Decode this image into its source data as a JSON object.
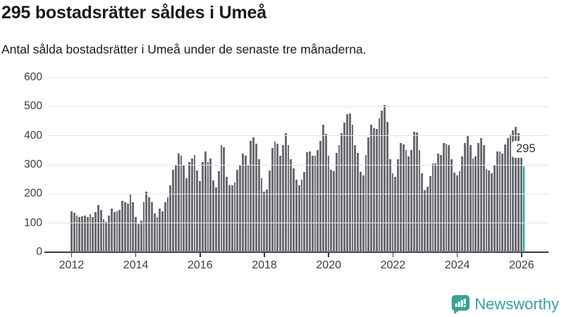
{
  "header": {
    "title": "295 bostadsrätter såldes i Umeå",
    "subtitle": "Antal sålda bostadsrätter i Umeå under de senaste tre månaderna."
  },
  "chart_data": {
    "type": "bar",
    "title": "295 bostadsrätter såldes i Umeå",
    "subtitle": "Antal sålda bostadsrätter i Umeå under de senaste tre månaderna.",
    "x_unit": "month",
    "start_month": "2012-01",
    "end_month": "2026-02",
    "ylim": [
      0,
      600
    ],
    "yticks": [
      0,
      100,
      200,
      300,
      400,
      500,
      600
    ],
    "grid": true,
    "bar_color": "#6b6b73",
    "highlight_color": "#00a49e",
    "highlight_index": 169,
    "annotation_label": "295",
    "x_ticks": [
      {
        "label": "2012",
        "index": 0
      },
      {
        "label": "2014",
        "index": 24
      },
      {
        "label": "2016",
        "index": 48
      },
      {
        "label": "2018",
        "index": 72
      },
      {
        "label": "2020",
        "index": 96
      },
      {
        "label": "2022",
        "index": 120
      },
      {
        "label": "2024",
        "index": 144
      },
      {
        "label": "2026",
        "index": 168
      }
    ],
    "values": [
      140,
      136,
      125,
      120,
      124,
      127,
      122,
      131,
      121,
      139,
      163,
      145,
      114,
      104,
      126,
      149,
      139,
      141,
      146,
      177,
      171,
      168,
      200,
      172,
      120,
      97,
      108,
      171,
      208,
      190,
      171,
      134,
      120,
      149,
      141,
      171,
      190,
      230,
      283,
      298,
      338,
      332,
      298,
      255,
      310,
      322,
      333,
      280,
      245,
      309,
      345,
      310,
      322,
      248,
      223,
      278,
      369,
      361,
      260,
      229,
      229,
      240,
      283,
      298,
      338,
      332,
      298,
      383,
      395,
      373,
      319,
      255,
      209,
      215,
      280,
      359,
      379,
      373,
      332,
      369,
      409,
      367,
      319,
      288,
      249,
      230,
      249,
      277,
      343,
      345,
      331,
      331,
      351,
      383,
      438,
      406,
      331,
      282,
      278,
      341,
      369,
      410,
      446,
      474,
      477,
      438,
      367,
      341,
      277,
      264,
      333,
      395,
      438,
      427,
      423,
      460,
      486,
      506,
      448,
      320,
      270,
      258,
      319,
      375,
      371,
      351,
      328,
      350,
      414,
      412,
      350,
      272,
      212,
      226,
      262,
      306,
      306,
      339,
      335,
      375,
      373,
      369,
      320,
      274,
      264,
      278,
      328,
      375,
      401,
      369,
      323,
      328,
      375,
      391,
      369,
      286,
      280,
      270,
      298,
      345,
      346,
      340,
      370,
      393,
      405,
      419,
      430,
      408,
      340,
      295
    ]
  },
  "footer": {
    "brand": "Newsworthy"
  }
}
